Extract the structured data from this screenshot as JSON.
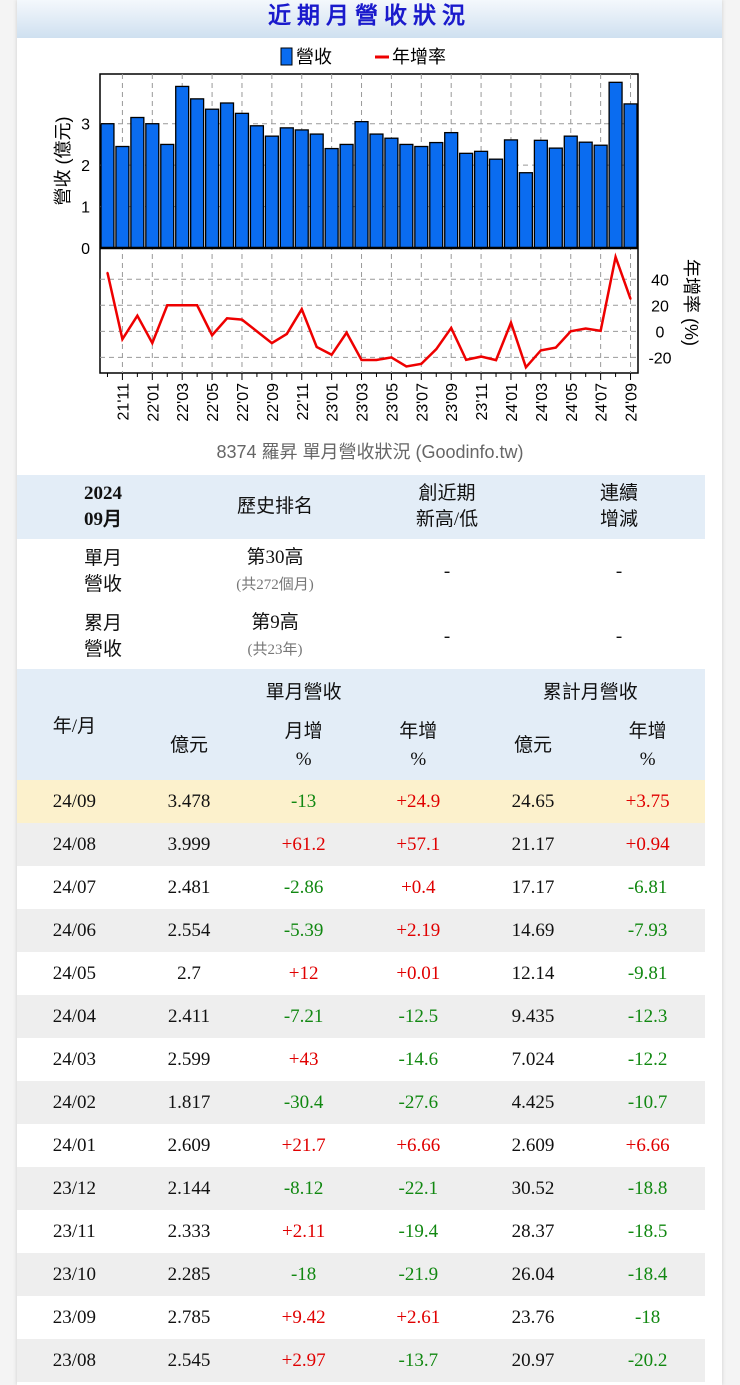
{
  "title": "近期月營收狀況",
  "chart_data": {
    "type": "bar+line",
    "legend": [
      "營收",
      "年增率"
    ],
    "legend_placement": "top",
    "caption": "8374 羅昇 單月營收狀況  (Goodinfo.tw)",
    "ylabel": "營收 (億元)",
    "y2label": "年增率 (%)",
    "ylim": [
      0,
      4.2
    ],
    "y2lim": [
      -32,
      64
    ],
    "yticks": [
      0,
      1,
      2,
      3
    ],
    "y2ticks": [
      -20,
      0,
      20,
      40
    ],
    "grid": true,
    "colors": {
      "bar": "#0a6cf0",
      "line": "#ee0000"
    },
    "categories": [
      "21/10",
      "21/11",
      "21/12",
      "22/01",
      "22/02",
      "22/03",
      "22/04",
      "22/05",
      "22/06",
      "22/07",
      "22/08",
      "22/09",
      "22/10",
      "22/11",
      "22/12",
      "23/01",
      "23/02",
      "23/03",
      "23/04",
      "23/05",
      "23/06",
      "23/07",
      "23/08",
      "23/09",
      "23/10",
      "23/11",
      "23/12",
      "24/01",
      "24/02",
      "24/03",
      "24/04",
      "24/05",
      "24/06",
      "24/07",
      "24/08",
      "24/09"
    ],
    "xticklabels": [
      "21'11",
      "22'01",
      "22'03",
      "22'05",
      "22'07",
      "22'09",
      "22'11",
      "23'01",
      "23'03",
      "23'05",
      "23'07",
      "23'09",
      "23'11",
      "24'01",
      "24'03",
      "24'05",
      "24'07",
      "24'09"
    ],
    "series": [
      {
        "name": "營收",
        "type": "bar",
        "values": [
          3.0,
          2.45,
          3.15,
          3.0,
          2.5,
          3.9,
          3.6,
          3.35,
          3.5,
          3.25,
          2.95,
          2.7,
          2.9,
          2.85,
          2.75,
          2.4,
          2.5,
          3.05,
          2.75,
          2.65,
          2.5,
          2.45,
          2.545,
          2.785,
          2.285,
          2.333,
          2.144,
          2.609,
          1.817,
          2.599,
          2.411,
          2.7,
          2.554,
          2.481,
          3.999,
          3.478
        ]
      },
      {
        "name": "年增率",
        "type": "line",
        "values": [
          45,
          -6,
          12,
          -9,
          20,
          20,
          20,
          -3,
          10,
          9,
          0,
          -9,
          -2,
          17,
          -12,
          -18,
          -1,
          -22,
          -22,
          -20,
          -27,
          -25,
          -13.7,
          2.61,
          -21.9,
          -19.4,
          -22.1,
          6.66,
          -27.6,
          -14.6,
          -12.5,
          0.01,
          2.19,
          0.4,
          57.1,
          24.9
        ]
      }
    ]
  },
  "summary": {
    "header": [
      "2024\n09月",
      "歷史排名",
      "創近期\n新高/低",
      "連續\n增減"
    ],
    "rows": [
      {
        "label": "單月\n營收",
        "rank": "第30高",
        "rank_sub": "(共272個月)",
        "high_low": "-",
        "streak": "-"
      },
      {
        "label": "累月\n營收",
        "rank": "第9高",
        "rank_sub": "(共23年)",
        "high_low": "-",
        "streak": "-"
      }
    ]
  },
  "table": {
    "group_single": "單月營收",
    "group_cum": "累計月營收",
    "col_month": "年/月",
    "cols": [
      "億元",
      "月增\n%",
      "年增\n%",
      "億元",
      "年增\n%"
    ],
    "rows": [
      [
        "24/09",
        "3.478",
        "-13",
        "+24.9",
        "24.65",
        "+3.75"
      ],
      [
        "24/08",
        "3.999",
        "+61.2",
        "+57.1",
        "21.17",
        "+0.94"
      ],
      [
        "24/07",
        "2.481",
        "-2.86",
        "+0.4",
        "17.17",
        "-6.81"
      ],
      [
        "24/06",
        "2.554",
        "-5.39",
        "+2.19",
        "14.69",
        "-7.93"
      ],
      [
        "24/05",
        "2.7",
        "+12",
        "+0.01",
        "12.14",
        "-9.81"
      ],
      [
        "24/04",
        "2.411",
        "-7.21",
        "-12.5",
        "9.435",
        "-12.3"
      ],
      [
        "24/03",
        "2.599",
        "+43",
        "-14.6",
        "7.024",
        "-12.2"
      ],
      [
        "24/02",
        "1.817",
        "-30.4",
        "-27.6",
        "4.425",
        "-10.7"
      ],
      [
        "24/01",
        "2.609",
        "+21.7",
        "+6.66",
        "2.609",
        "+6.66"
      ],
      [
        "23/12",
        "2.144",
        "-8.12",
        "-22.1",
        "30.52",
        "-18.8"
      ],
      [
        "23/11",
        "2.333",
        "+2.11",
        "-19.4",
        "28.37",
        "-18.5"
      ],
      [
        "23/10",
        "2.285",
        "-18",
        "-21.9",
        "26.04",
        "-18.4"
      ],
      [
        "23/09",
        "2.785",
        "+9.42",
        "+2.61",
        "23.76",
        "-18"
      ],
      [
        "23/08",
        "2.545",
        "+2.97",
        "-13.7",
        "20.97",
        "-20.2"
      ]
    ]
  }
}
